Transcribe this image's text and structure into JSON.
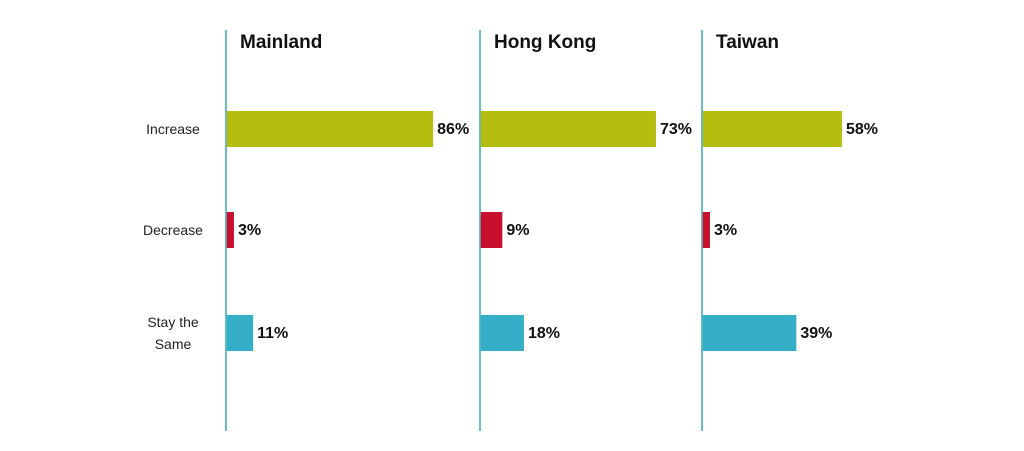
{
  "chart_data": [
    {
      "type": "bar",
      "title": "Mainland",
      "categories": [
        "Increase",
        "Decrease",
        "Stay the Same"
      ],
      "values": [
        86,
        3,
        11
      ],
      "value_labels": [
        "86%",
        "3%",
        "11%"
      ],
      "colors": [
        "#b5be10",
        "#c8102e",
        "#35afc8"
      ]
    },
    {
      "type": "bar",
      "title": "Hong Kong",
      "categories": [
        null,
        null,
        null
      ],
      "values": [
        73,
        9,
        18
      ],
      "value_labels": [
        "73%",
        "9%",
        "18%"
      ],
      "colors": [
        "#b5be10",
        "#c8102e",
        "#35afc8"
      ]
    },
    {
      "type": "bar",
      "title": "Taiwan",
      "categories": [
        null,
        null,
        null
      ],
      "values": [
        58,
        3,
        39
      ],
      "value_labels": [
        "58%",
        "3%",
        "39%"
      ],
      "colors": [
        "#b5be10",
        "#c8102e",
        "#35afc8"
      ]
    }
  ]
}
